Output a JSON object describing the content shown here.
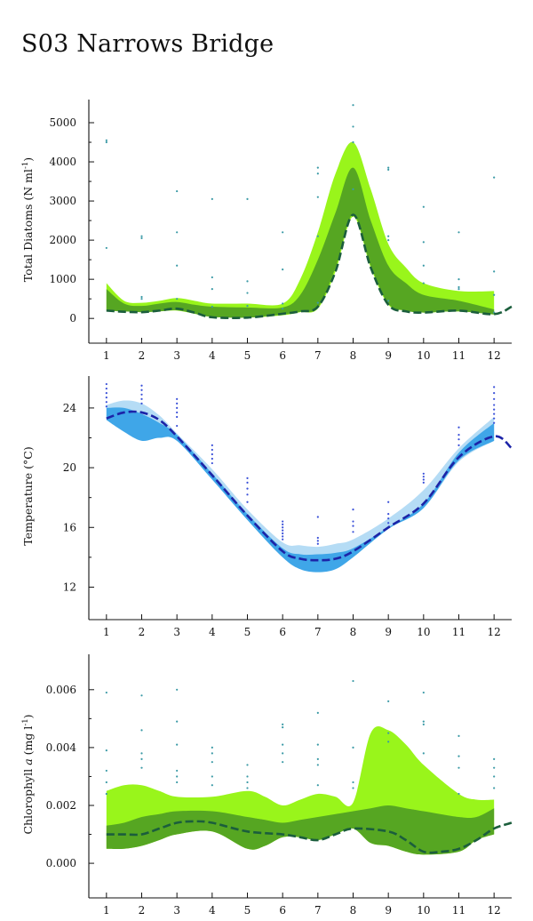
{
  "title": "S03 Narrows Bridge",
  "chart_data": [
    {
      "type": "area",
      "name": "diatoms",
      "ylabel_parts": [
        {
          "text": "Total Diatoms (N ml",
          "style": "normal"
        },
        {
          "text": "-1",
          "style": "sup"
        },
        {
          "text": ")",
          "style": "normal"
        }
      ],
      "xlabel": "",
      "xlim": [
        0.5,
        12.5
      ],
      "ylim": [
        -450,
        5500
      ],
      "yticks": [
        0,
        1000,
        2000,
        3000,
        4000,
        5000
      ],
      "ytick_labels": [
        "0",
        "1000",
        "2000",
        "3000",
        "4000",
        "5000"
      ],
      "xticks": [
        1,
        2,
        3,
        4,
        5,
        6,
        7,
        8,
        9,
        10,
        11,
        12
      ],
      "xtick_labels": [
        "1",
        "2",
        "3",
        "4",
        "5",
        "6",
        "7",
        "8",
        "9",
        "10",
        "11",
        "12"
      ],
      "colors": {
        "outer": "#99f51b",
        "inner": "#56a622",
        "mean": "#1b5e3c",
        "points": "#3b9aa6"
      },
      "x": [
        1,
        1.5,
        2,
        2.5,
        3,
        3.5,
        4,
        5,
        6,
        6.5,
        7,
        7.5,
        8,
        8.5,
        9,
        9.5,
        10,
        11,
        12
      ],
      "outer_upper": [
        900,
        450,
        400,
        450,
        520,
        450,
        380,
        380,
        380,
        1000,
        2200,
        3700,
        4500,
        3300,
        1900,
        1300,
        900,
        700,
        700
      ],
      "outer_lower": [
        200,
        180,
        160,
        180,
        200,
        120,
        40,
        20,
        80,
        160,
        250,
        1200,
        2600,
        1300,
        350,
        200,
        150,
        180,
        100
      ],
      "inner_upper": [
        750,
        380,
        320,
        380,
        420,
        350,
        300,
        280,
        280,
        600,
        1500,
        2700,
        3850,
        2500,
        1350,
        900,
        600,
        450,
        230
      ],
      "inner_lower": [
        200,
        180,
        160,
        180,
        210,
        120,
        40,
        20,
        100,
        170,
        280,
        1300,
        2650,
        1350,
        380,
        200,
        150,
        180,
        100
      ],
      "mean_x": [
        1,
        1.5,
        2,
        2.5,
        3,
        3.5,
        4,
        5,
        6,
        6.5,
        7,
        7.5,
        8,
        8.5,
        9,
        9.5,
        10,
        11,
        12,
        12.5
      ],
      "mean_y": [
        200,
        170,
        160,
        200,
        250,
        150,
        30,
        20,
        120,
        180,
        300,
        1200,
        2650,
        1300,
        350,
        180,
        150,
        200,
        110,
        300
      ],
      "points": [
        [
          1,
          4550
        ],
        [
          1,
          4500
        ],
        [
          1,
          1800
        ],
        [
          2,
          2100
        ],
        [
          2,
          2050
        ],
        [
          2,
          550
        ],
        [
          2,
          500
        ],
        [
          3,
          3250
        ],
        [
          3,
          2200
        ],
        [
          3,
          1350
        ],
        [
          3,
          500
        ],
        [
          4,
          3050
        ],
        [
          4,
          1050
        ],
        [
          4,
          750
        ],
        [
          4,
          300
        ],
        [
          5,
          3050
        ],
        [
          5,
          950
        ],
        [
          5,
          650
        ],
        [
          5,
          320
        ],
        [
          6,
          2200
        ],
        [
          6,
          1250
        ],
        [
          6,
          380
        ],
        [
          6,
          250
        ],
        [
          7,
          3850
        ],
        [
          7,
          3700
        ],
        [
          7,
          3100
        ],
        [
          7,
          2100
        ],
        [
          7,
          400
        ],
        [
          8,
          5450
        ],
        [
          8,
          4900
        ],
        [
          8,
          4500
        ],
        [
          8,
          3300
        ],
        [
          8,
          2650
        ],
        [
          9,
          3850
        ],
        [
          9,
          3800
        ],
        [
          9,
          2100
        ],
        [
          9,
          2000
        ],
        [
          9,
          450
        ],
        [
          10,
          2850
        ],
        [
          10,
          1950
        ],
        [
          10,
          1350
        ],
        [
          10,
          900
        ],
        [
          11,
          2200
        ],
        [
          11,
          1000
        ],
        [
          11,
          800
        ],
        [
          11,
          750
        ],
        [
          12,
          3600
        ],
        [
          12,
          1200
        ],
        [
          12,
          600
        ],
        [
          12,
          150
        ]
      ]
    },
    {
      "type": "area",
      "name": "temperature",
      "ylabel_parts": [
        {
          "text": "Temperature (°C)",
          "style": "normal"
        }
      ],
      "xlabel": "",
      "xlim": [
        0.5,
        12.5
      ],
      "ylim": [
        10.3,
        25.9
      ],
      "yticks": [
        12,
        16,
        20,
        24
      ],
      "ytick_labels": [
        "12",
        "16",
        "20",
        "24"
      ],
      "xticks": [
        1,
        2,
        3,
        4,
        5,
        6,
        7,
        8,
        9,
        10,
        11,
        12
      ],
      "xtick_labels": [
        "1",
        "2",
        "3",
        "4",
        "5",
        "6",
        "7",
        "8",
        "9",
        "10",
        "11",
        "12"
      ],
      "colors": {
        "outer": "#b5dcf5",
        "inner": "#3fa6e8",
        "mean": "#1c24a8",
        "points": "#3a50d8"
      },
      "x": [
        1,
        1.5,
        2,
        2.5,
        3,
        4,
        5,
        6,
        6.5,
        7,
        7.5,
        8,
        9,
        10,
        11,
        12
      ],
      "outer_upper": [
        24.2,
        24.5,
        24.3,
        23.5,
        22.3,
        19.9,
        17.2,
        15.0,
        14.8,
        14.7,
        14.9,
        15.2,
        16.6,
        18.5,
        21.3,
        23.4
      ],
      "outer_lower": [
        23.3,
        23.0,
        22.1,
        22.0,
        21.8,
        19.3,
        16.5,
        14.0,
        13.5,
        13.6,
        13.8,
        14.2,
        16.0,
        17.3,
        20.4,
        21.8
      ],
      "inner_upper": [
        24.0,
        24.0,
        23.6,
        23.0,
        22.2,
        19.6,
        16.9,
        14.6,
        14.2,
        14.2,
        14.3,
        14.6,
        16.0,
        17.6,
        21.0,
        23.0
      ],
      "inner_lower": [
        23.2,
        22.4,
        21.8,
        22.0,
        21.8,
        19.2,
        16.5,
        14.0,
        13.2,
        13.0,
        13.2,
        14.0,
        15.9,
        17.3,
        20.5,
        21.8
      ],
      "mean_x": [
        1,
        1.5,
        2,
        2.5,
        3,
        4,
        5,
        6,
        6.5,
        7,
        7.5,
        8,
        9,
        10,
        11,
        12,
        12.5
      ],
      "mean_y": [
        23.3,
        23.7,
        23.7,
        23.2,
        22.1,
        19.5,
        16.8,
        14.4,
        13.9,
        13.8,
        13.9,
        14.4,
        16.0,
        17.6,
        20.7,
        22.1,
        21.3
      ],
      "points": [
        [
          1,
          25.6
        ],
        [
          1,
          25.3
        ],
        [
          1,
          25.0
        ],
        [
          1,
          24.7
        ],
        [
          1,
          24.4
        ],
        [
          1,
          24.1
        ],
        [
          2,
          25.5
        ],
        [
          2,
          25.2
        ],
        [
          2,
          24.9
        ],
        [
          2,
          24.6
        ],
        [
          2,
          24.3
        ],
        [
          3,
          24.6
        ],
        [
          3,
          24.3
        ],
        [
          3,
          24.0
        ],
        [
          3,
          23.7
        ],
        [
          3,
          23.4
        ],
        [
          3,
          22.8
        ],
        [
          4,
          21.5
        ],
        [
          4,
          21.2
        ],
        [
          4,
          20.9
        ],
        [
          4,
          20.6
        ],
        [
          4,
          20.3
        ],
        [
          5,
          19.3
        ],
        [
          5,
          19.0
        ],
        [
          5,
          18.6
        ],
        [
          5,
          18.2
        ],
        [
          5,
          17.7
        ],
        [
          6,
          16.4
        ],
        [
          6,
          16.2
        ],
        [
          6,
          16.0
        ],
        [
          6,
          15.8
        ],
        [
          6,
          15.6
        ],
        [
          6,
          15.4
        ],
        [
          6,
          15.2
        ],
        [
          7,
          16.7
        ],
        [
          7,
          15.3
        ],
        [
          7,
          15.1
        ],
        [
          7,
          14.9
        ],
        [
          8,
          17.2
        ],
        [
          8,
          16.4
        ],
        [
          8,
          16.1
        ],
        [
          8,
          15.7
        ],
        [
          9,
          17.7
        ],
        [
          9,
          16.9
        ],
        [
          9,
          16.6
        ],
        [
          9,
          16.3
        ],
        [
          10,
          19.6
        ],
        [
          10,
          19.4
        ],
        [
          10,
          19.2
        ],
        [
          10,
          19.0
        ],
        [
          11,
          22.7
        ],
        [
          11,
          22.2
        ],
        [
          11,
          21.9
        ],
        [
          11,
          21.5
        ],
        [
          12,
          25.4
        ],
        [
          12,
          25.0
        ],
        [
          12,
          24.6
        ],
        [
          12,
          24.2
        ],
        [
          12,
          23.9
        ],
        [
          12,
          23.6
        ],
        [
          12,
          23.3
        ],
        [
          12,
          23.0
        ]
      ]
    },
    {
      "type": "area",
      "name": "chlorophyll",
      "ylabel_parts": [
        {
          "text": "Chlorophyll ",
          "style": "normal"
        },
        {
          "text": "a",
          "style": "italic"
        },
        {
          "text": " (mg l",
          "style": "normal"
        },
        {
          "text": "-1",
          "style": "sup"
        },
        {
          "text": ")",
          "style": "normal"
        }
      ],
      "xlabel": "",
      "xlim": [
        0.5,
        12.5
      ],
      "ylim": [
        -0.00095,
        0.0071
      ],
      "yticks": [
        0,
        0.002,
        0.004,
        0.006
      ],
      "ytick_labels": [
        "0.000",
        "0.002",
        "0.004",
        "0.006"
      ],
      "xticks": [
        1,
        2,
        3,
        4,
        5,
        6,
        7,
        8,
        9,
        10,
        11,
        12
      ],
      "xtick_labels": [
        "1",
        "2",
        "3",
        "4",
        "5",
        "6",
        "7",
        "8",
        "9",
        "10",
        "11",
        "12"
      ],
      "colors": {
        "outer": "#99f51b",
        "inner": "#56a622",
        "mean": "#1b5e3c",
        "points": "#3b9aa6"
      },
      "x": [
        1,
        1.5,
        2,
        2.5,
        3,
        4,
        5,
        5.5,
        6,
        6.5,
        7,
        7.5,
        8,
        8.5,
        9,
        9.5,
        10,
        11,
        11.5,
        12
      ],
      "outer_upper": [
        0.0025,
        0.0027,
        0.0027,
        0.0025,
        0.0023,
        0.0023,
        0.0025,
        0.0023,
        0.002,
        0.0022,
        0.0024,
        0.0023,
        0.0021,
        0.0045,
        0.0046,
        0.0041,
        0.0034,
        0.0024,
        0.0022,
        0.0022
      ],
      "outer_lower": [
        0.0005,
        0.0005,
        0.0006,
        0.0008,
        0.001,
        0.0011,
        0.0005,
        0.0006,
        0.0009,
        0.0009,
        0.0008,
        0.001,
        0.0012,
        0.0007,
        0.0006,
        0.0004,
        0.0003,
        0.0004,
        0.0008,
        0.001
      ],
      "inner_upper": [
        0.0013,
        0.0014,
        0.0016,
        0.0017,
        0.0018,
        0.0018,
        0.0016,
        0.0015,
        0.0014,
        0.0015,
        0.0016,
        0.0017,
        0.0018,
        0.0019,
        0.002,
        0.0019,
        0.0018,
        0.0016,
        0.0016,
        0.0019
      ],
      "inner_lower": [
        0.0005,
        0.0005,
        0.0006,
        0.0008,
        0.001,
        0.0011,
        0.0005,
        0.0006,
        0.0009,
        0.0009,
        0.0008,
        0.001,
        0.0012,
        0.0007,
        0.0006,
        0.0004,
        0.0003,
        0.0004,
        0.0008,
        0.001
      ],
      "mean_x": [
        1,
        1.5,
        2,
        2.5,
        3,
        3.5,
        4,
        5,
        6,
        6.5,
        7,
        7.5,
        8,
        9,
        9.5,
        10,
        10.5,
        11,
        11.5,
        12,
        12.5
      ],
      "mean_y": [
        0.001,
        0.001,
        0.001,
        0.0012,
        0.0014,
        0.00145,
        0.0014,
        0.0011,
        0.001,
        0.0009,
        0.0008,
        0.001,
        0.0012,
        0.0011,
        0.0008,
        0.0004,
        0.0004,
        0.0005,
        0.0008,
        0.0012,
        0.0014
      ],
      "points": [
        [
          1,
          0.0059
        ],
        [
          1,
          0.0039
        ],
        [
          1,
          0.0032
        ],
        [
          1,
          0.0028
        ],
        [
          1,
          0.0024
        ],
        [
          2,
          0.0058
        ],
        [
          2,
          0.0046
        ],
        [
          2,
          0.0038
        ],
        [
          2,
          0.0036
        ],
        [
          2,
          0.0033
        ],
        [
          3,
          0.006
        ],
        [
          3,
          0.0049
        ],
        [
          3,
          0.0041
        ],
        [
          3,
          0.0032
        ],
        [
          3,
          0.003
        ],
        [
          3,
          0.0028
        ],
        [
          4,
          0.004
        ],
        [
          4,
          0.0038
        ],
        [
          4,
          0.0035
        ],
        [
          4,
          0.003
        ],
        [
          4,
          0.0027
        ],
        [
          5,
          0.0034
        ],
        [
          5,
          0.003
        ],
        [
          5,
          0.0028
        ],
        [
          5,
          0.0026
        ],
        [
          6,
          0.0048
        ],
        [
          6,
          0.0047
        ],
        [
          6,
          0.0041
        ],
        [
          6,
          0.0038
        ],
        [
          6,
          0.0035
        ],
        [
          7,
          0.0052
        ],
        [
          7,
          0.0041
        ],
        [
          7,
          0.0036
        ],
        [
          7,
          0.0034
        ],
        [
          7,
          0.0027
        ],
        [
          8,
          0.0063
        ],
        [
          8,
          0.004
        ],
        [
          8,
          0.0028
        ],
        [
          8,
          0.0026
        ],
        [
          9,
          0.0056
        ],
        [
          9,
          0.0045
        ],
        [
          9,
          0.0042
        ],
        [
          10,
          0.0059
        ],
        [
          10,
          0.0049
        ],
        [
          10,
          0.0048
        ],
        [
          10,
          0.0038
        ],
        [
          11,
          0.0044
        ],
        [
          11,
          0.0037
        ],
        [
          11,
          0.0033
        ],
        [
          11,
          0.0024
        ],
        [
          12,
          0.0036
        ],
        [
          12,
          0.0033
        ],
        [
          12,
          0.003
        ],
        [
          12,
          0.0026
        ]
      ]
    }
  ]
}
